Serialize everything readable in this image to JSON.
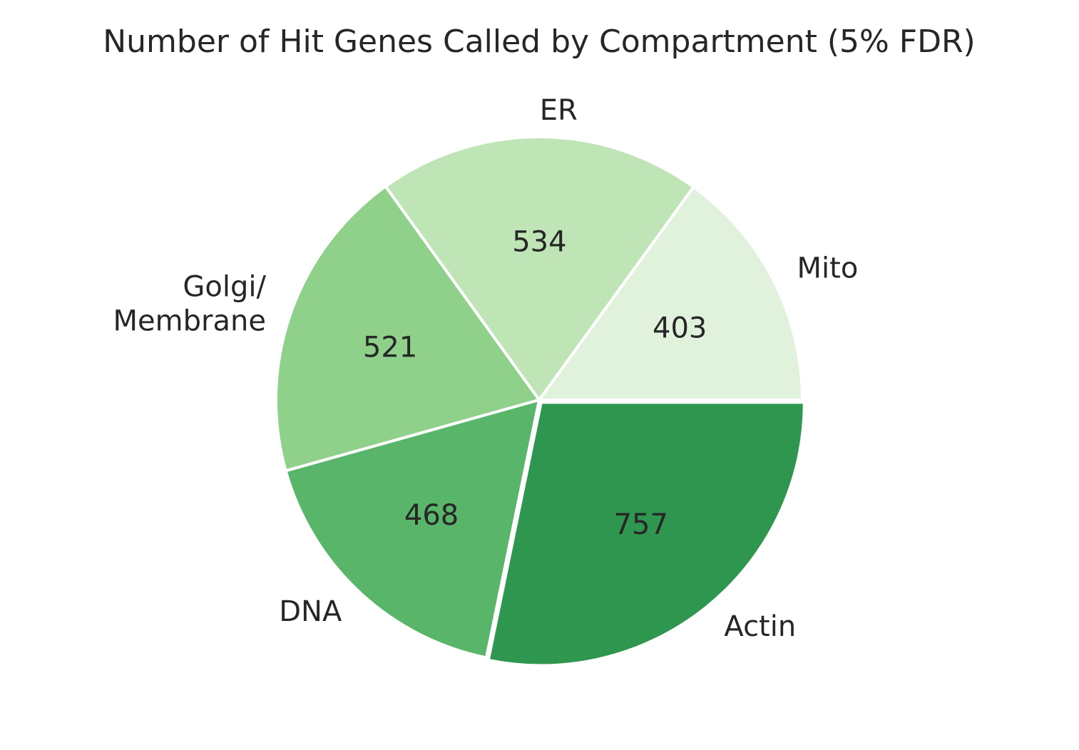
{
  "chart_data": {
    "type": "pie",
    "title": "Number of Hit Genes Called by Compartment (5% FDR)",
    "start_angle": "0° (3 o'clock), counter-clockwise",
    "slices": [
      {
        "label": [
          "Mito"
        ],
        "value": 403,
        "color": "#e0f2dc"
      },
      {
        "label": [
          "ER"
        ],
        "value": 534,
        "color": "#bfe5b6"
      },
      {
        "label": [
          "Golgi/",
          "Membrane"
        ],
        "value": 521,
        "color": "#8fd08b"
      },
      {
        "label": [
          "DNA"
        ],
        "value": 468,
        "color": "#58b56a"
      },
      {
        "label": [
          "Actin"
        ],
        "value": 757,
        "color": "#2e964e"
      }
    ],
    "explode": [
      0,
      0,
      0,
      0,
      0.012
    ],
    "legend": "none"
  }
}
